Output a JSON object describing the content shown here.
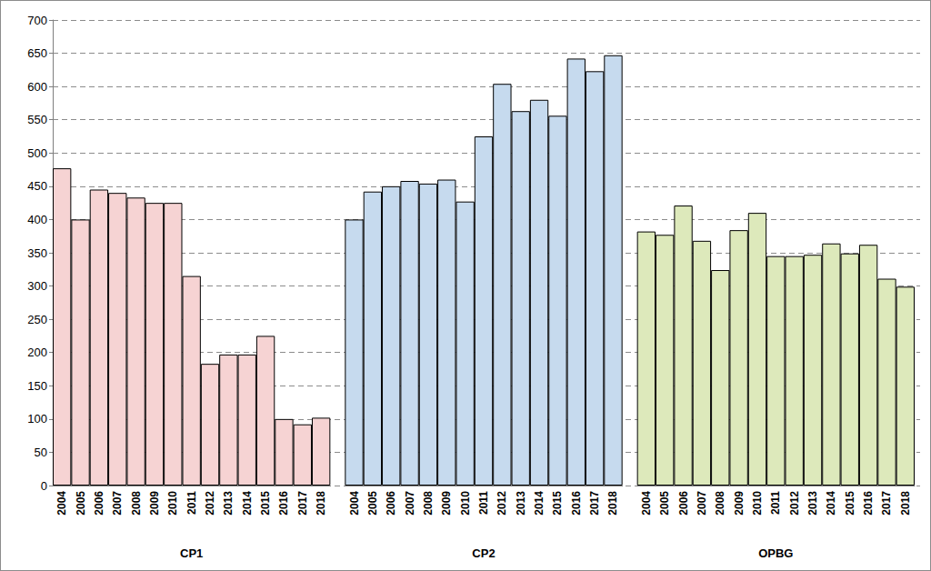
{
  "chart_data": {
    "type": "bar",
    "categories": [
      "2004",
      "2005",
      "2006",
      "2007",
      "2008",
      "2009",
      "2010",
      "2011",
      "2012",
      "2013",
      "2014",
      "2015",
      "2016",
      "2017",
      "2018"
    ],
    "series": [
      {
        "name": "CP1",
        "color": "#f6d3d3",
        "values": [
          477,
          400,
          445,
          440,
          433,
          425,
          425,
          315,
          183,
          197,
          197,
          225,
          100,
          92,
          102
        ]
      },
      {
        "name": "CP2",
        "color": "#c6daee",
        "values": [
          400,
          442,
          450,
          458,
          454,
          460,
          427,
          525,
          604,
          563,
          580,
          556,
          642,
          623,
          647
        ]
      },
      {
        "name": "OPBG",
        "color": "#dde9bb",
        "values": [
          382,
          377,
          421,
          368,
          324,
          384,
          410,
          345,
          345,
          347,
          364,
          349,
          362,
          311,
          299
        ]
      }
    ],
    "ylim": [
      0,
      700
    ],
    "yticks": [
      0,
      50,
      100,
      150,
      200,
      250,
      300,
      350,
      400,
      450,
      500,
      550,
      600,
      650,
      700
    ],
    "grid": true
  }
}
